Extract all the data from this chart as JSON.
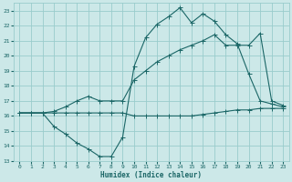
{
  "title": "",
  "xlabel": "Humidex (Indice chaleur)",
  "ylabel": "",
  "bg_color": "#cce8e8",
  "grid_color": "#99cccc",
  "line_color": "#1a6666",
  "xlim": [
    -0.5,
    23.5
  ],
  "ylim": [
    13,
    23.5
  ],
  "yticks": [
    13,
    14,
    15,
    16,
    17,
    18,
    19,
    20,
    21,
    22,
    23
  ],
  "xticks": [
    0,
    1,
    2,
    3,
    4,
    5,
    6,
    7,
    8,
    9,
    10,
    11,
    12,
    13,
    14,
    15,
    16,
    17,
    18,
    19,
    20,
    21,
    22,
    23
  ],
  "line1_x": [
    0,
    1,
    2,
    3,
    4,
    5,
    6,
    7,
    8,
    9,
    10,
    11,
    12,
    13,
    14,
    15,
    16,
    17,
    18,
    19,
    20,
    21,
    22,
    23
  ],
  "line1_y": [
    16.2,
    16.2,
    16.2,
    16.2,
    16.2,
    16.2,
    16.2,
    16.2,
    16.2,
    16.2,
    16.0,
    16.0,
    16.0,
    16.0,
    16.0,
    16.0,
    16.1,
    16.2,
    16.3,
    16.4,
    16.4,
    16.5,
    16.5,
    16.5
  ],
  "line2_x": [
    0,
    1,
    2,
    3,
    4,
    5,
    6,
    7,
    8,
    9,
    10,
    11,
    12,
    13,
    14,
    15,
    16,
    17,
    18,
    19,
    20,
    21,
    22,
    23
  ],
  "line2_y": [
    16.2,
    16.2,
    16.2,
    16.3,
    16.6,
    17.0,
    17.3,
    17.0,
    17.0,
    17.0,
    18.4,
    19.0,
    19.6,
    20.0,
    20.4,
    20.7,
    21.0,
    21.4,
    20.7,
    20.7,
    20.7,
    21.5,
    17.0,
    16.7
  ],
  "line3_x": [
    0,
    1,
    2,
    3,
    4,
    5,
    6,
    7,
    8,
    9,
    10,
    11,
    12,
    13,
    14,
    15,
    16,
    17,
    18,
    19,
    20,
    21,
    22,
    23
  ],
  "line3_y": [
    16.2,
    16.2,
    16.2,
    15.3,
    14.8,
    14.2,
    13.8,
    13.3,
    13.3,
    14.6,
    19.3,
    21.2,
    22.1,
    22.6,
    23.2,
    22.2,
    22.8,
    22.3,
    21.4,
    20.8,
    18.8,
    17.0,
    16.8,
    16.6
  ]
}
